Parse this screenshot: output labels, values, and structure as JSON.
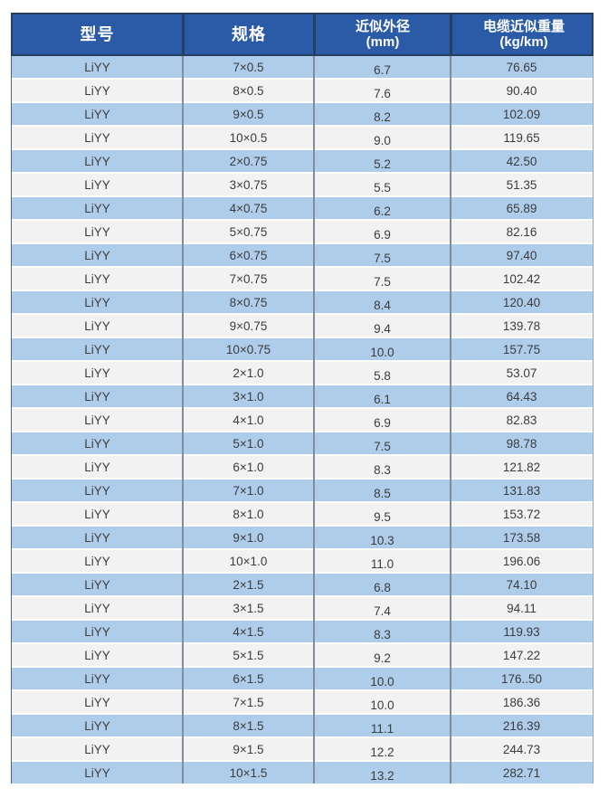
{
  "colors": {
    "header_bg": "#2B5BA7",
    "header_border": "#24405E",
    "header_text": "#FFFFFF",
    "row_alt_blue": "#AECDEA",
    "row_alt_gray": "#F2F2F2",
    "body_divider": "#828C96",
    "body_text": "#3C3C3C",
    "page_bg": "#FFFFFF"
  },
  "table": {
    "columns": [
      {
        "id": "model",
        "label": "型号",
        "sub": ""
      },
      {
        "id": "spec",
        "label": "规格",
        "sub": ""
      },
      {
        "id": "od",
        "label": "近似外径",
        "sub": "(mm)"
      },
      {
        "id": "weight",
        "label": "电缆近似重量",
        "sub": "(kg/km)"
      }
    ],
    "rows": [
      [
        "LiYY",
        "7×0.5",
        "6.7",
        "76.65"
      ],
      [
        "LiYY",
        "8×0.5",
        "7.6",
        "90.40"
      ],
      [
        "LiYY",
        "9×0.5",
        "8.2",
        "102.09"
      ],
      [
        "LiYY",
        "10×0.5",
        "9.0",
        "119.65"
      ],
      [
        "LiYY",
        "2×0.75",
        "5.2",
        "42.50"
      ],
      [
        "LiYY",
        "3×0.75",
        "5.5",
        "51.35"
      ],
      [
        "LiYY",
        "4×0.75",
        "6.2",
        "65.89"
      ],
      [
        "LiYY",
        "5×0.75",
        "6.9",
        "82.16"
      ],
      [
        "LiYY",
        "6×0.75",
        "7.5",
        "97.40"
      ],
      [
        "LiYY",
        "7×0.75",
        "7.5",
        "102.42"
      ],
      [
        "LiYY",
        "8×0.75",
        "8.4",
        "120.40"
      ],
      [
        "LiYY",
        "9×0.75",
        "9.4",
        "139.78"
      ],
      [
        "LiYY",
        "10×0.75",
        "10.0",
        "157.75"
      ],
      [
        "LiYY",
        "2×1.0",
        "5.8",
        "53.07"
      ],
      [
        "LiYY",
        "3×1.0",
        "6.1",
        "64.43"
      ],
      [
        "LiYY",
        "4×1.0",
        "6.9",
        "82.83"
      ],
      [
        "LiYY",
        "5×1.0",
        "7.5",
        "98.78"
      ],
      [
        "LiYY",
        "6×1.0",
        "8.3",
        "121.82"
      ],
      [
        "LiYY",
        "7×1.0",
        "8.5",
        "131.83"
      ],
      [
        "LiYY",
        "8×1.0",
        "9.5",
        "153.72"
      ],
      [
        "LiYY",
        "9×1.0",
        "10.3",
        "173.58"
      ],
      [
        "LiYY",
        "10×1.0",
        "11.0",
        "196.06"
      ],
      [
        "LiYY",
        "2×1.5",
        "6.8",
        "74.10"
      ],
      [
        "LiYY",
        "3×1.5",
        "7.4",
        "94.11"
      ],
      [
        "LiYY",
        "4×1.5",
        "8.3",
        "119.93"
      ],
      [
        "LiYY",
        "5×1.5",
        "9.2",
        "147.22"
      ],
      [
        "LiYY",
        "6×1.5",
        "10.0",
        "176..50"
      ],
      [
        "LiYY",
        "7×1.5",
        "10.0",
        "186.36"
      ],
      [
        "LiYY",
        "8×1.5",
        "11.1",
        "216.39"
      ],
      [
        "LiYY",
        "9×1.5",
        "12.2",
        "244.73"
      ],
      [
        "LiYY",
        "10×1.5",
        "13.2",
        "282.71"
      ]
    ]
  }
}
